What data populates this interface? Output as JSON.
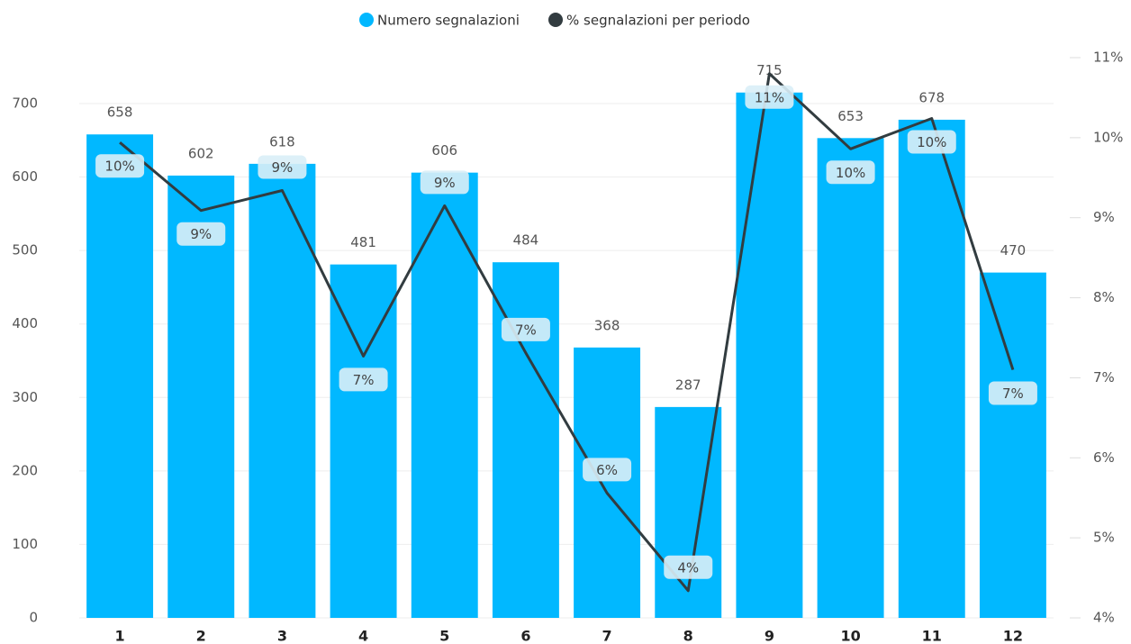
{
  "chart_data": {
    "type": "combo",
    "categories": [
      "1",
      "2",
      "3",
      "4",
      "5",
      "6",
      "7",
      "8",
      "9",
      "10",
      "11",
      "12"
    ],
    "series": [
      {
        "name": "Numero segnalazioni",
        "color": "#01b8ff",
        "type": "bar",
        "values": [
          658,
          602,
          618,
          481,
          606,
          484,
          368,
          287,
          715,
          653,
          678,
          470
        ]
      },
      {
        "name": "% segnalazioni per periodo",
        "color": "#323c40",
        "type": "line",
        "axis": "y2",
        "values": [
          9.94,
          9.09,
          9.34,
          7.27,
          9.15,
          7.31,
          5.56,
          4.34,
          10.8,
          9.86,
          10.24,
          7.1
        ],
        "value_labels": [
          "10%",
          "9%",
          "9%",
          "7%",
          "9%",
          "7%",
          "6%",
          "4%",
          "11%",
          "10%",
          "10%",
          "7%"
        ]
      }
    ],
    "ylim": [
      0,
      762.5
    ],
    "yticks": [
      0,
      100,
      200,
      300,
      400,
      500,
      600,
      700
    ],
    "y2lim": [
      4,
      11
    ],
    "y2ticks": [
      {
        "value": 4,
        "label": "4%"
      },
      {
        "value": 5,
        "label": "5%"
      },
      {
        "value": 6,
        "label": "6%"
      },
      {
        "value": 7,
        "label": "7%"
      },
      {
        "value": 8,
        "label": "8%"
      },
      {
        "value": 9,
        "label": "9%"
      },
      {
        "value": 10,
        "label": "10%"
      },
      {
        "value": 11,
        "label": "11%"
      }
    ],
    "grid": true,
    "legend": "top"
  }
}
